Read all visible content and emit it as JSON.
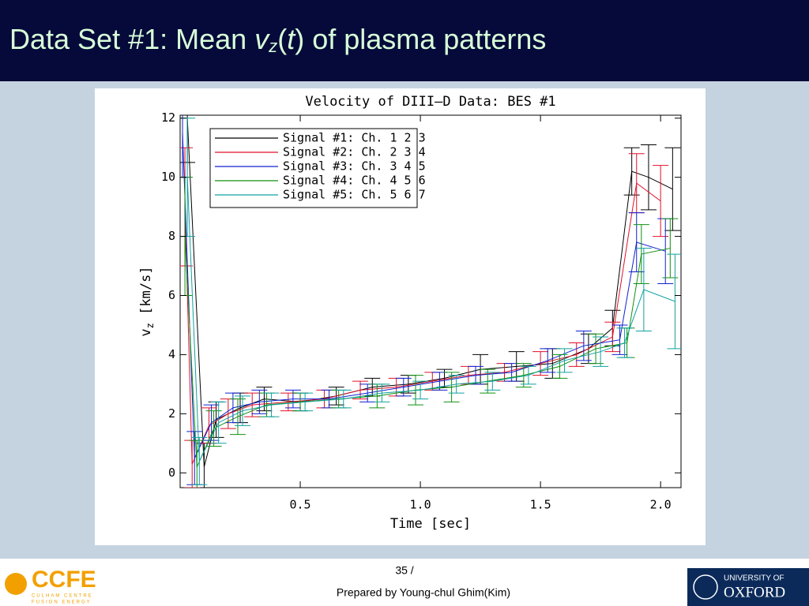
{
  "slide": {
    "title_parts": [
      "Data Set #1: Mean ",
      "v",
      "z",
      "(",
      "t",
      ") of plasma patterns"
    ],
    "page_number": "35 /",
    "footer": "Prepared by Young-chul Ghim(Kim)",
    "left_logo": {
      "name": "CCFE",
      "line1": "CULHAM CENTRE",
      "line2": "FUSION ENERGY"
    },
    "right_logo": {
      "line1": "UNIVERSITY OF",
      "line2": "OXFORD"
    }
  },
  "chart_data": {
    "type": "line",
    "title": "Velocity of DIII–D Data: BES #1",
    "x_label": "Time [sec]",
    "y_label_parts": [
      "v",
      "z",
      " [km/s]"
    ],
    "xlim": [
      0,
      2.085
    ],
    "ylim": [
      -0.5,
      12.1
    ],
    "xticks": [
      0.5,
      {
        "value": 1.0,
        "label": "1.0"
      },
      1.5,
      {
        "value": 2.0,
        "label": "2.0"
      }
    ],
    "yticks": [
      0,
      2,
      4,
      6,
      8,
      10,
      12
    ],
    "legend": "top-left",
    "series": [
      {
        "name": "Signal #1: Ch. 1 2 3",
        "color": "#000000",
        "x": [
          0.03,
          0.1,
          0.15,
          0.25,
          0.35,
          0.5,
          0.65,
          0.8,
          0.95,
          1.1,
          1.25,
          1.4,
          1.55,
          1.7,
          1.8,
          1.88,
          1.95,
          2.05
        ],
        "values": [
          12,
          0.2,
          1.8,
          2.2,
          2.5,
          2.4,
          2.6,
          2.9,
          3.0,
          3.2,
          3.5,
          3.6,
          3.7,
          4.2,
          4.9,
          10.2,
          10.0,
          9.6
        ],
        "errors": [
          1.5,
          0.8,
          0.6,
          0.5,
          0.4,
          0.3,
          0.3,
          0.3,
          0.3,
          0.3,
          0.5,
          0.5,
          0.5,
          0.5,
          0.6,
          0.8,
          1.1,
          1.4
        ]
      },
      {
        "name": "Signal #2: Ch. 2 3 4",
        "color": "#e0102a",
        "x": [
          0.02,
          0.05,
          0.12,
          0.2,
          0.3,
          0.45,
          0.6,
          0.75,
          0.9,
          1.05,
          1.2,
          1.35,
          1.5,
          1.65,
          1.8,
          1.9,
          2.0
        ],
        "values": [
          9,
          0.3,
          1.6,
          2.0,
          2.3,
          2.4,
          2.5,
          2.8,
          2.9,
          3.1,
          3.3,
          3.4,
          3.7,
          4.0,
          4.6,
          9.8,
          9.2
        ],
        "errors": [
          2.0,
          0.8,
          0.6,
          0.5,
          0.4,
          0.3,
          0.3,
          0.3,
          0.3,
          0.3,
          0.3,
          0.3,
          0.4,
          0.4,
          0.5,
          1.0,
          1.2
        ]
      },
      {
        "name": "Signal #3: Ch. 3 4 5",
        "color": "#1020d0",
        "x": [
          0.01,
          0.06,
          0.13,
          0.22,
          0.33,
          0.47,
          0.62,
          0.78,
          0.93,
          1.08,
          1.23,
          1.38,
          1.53,
          1.68,
          1.83,
          1.9,
          2.02
        ],
        "values": [
          11.5,
          0.5,
          1.7,
          2.2,
          2.4,
          2.5,
          2.5,
          2.7,
          2.9,
          3.1,
          3.3,
          3.4,
          3.8,
          4.3,
          4.5,
          7.8,
          7.5
        ],
        "errors": [
          1.5,
          0.9,
          0.6,
          0.5,
          0.4,
          0.3,
          0.3,
          0.3,
          0.3,
          0.3,
          0.3,
          0.3,
          0.4,
          0.5,
          0.5,
          1.0,
          1.1
        ]
      },
      {
        "name": "Signal #4: Ch. 4 5 6",
        "color": "#109010",
        "x": [
          0.02,
          0.07,
          0.14,
          0.24,
          0.36,
          0.5,
          0.66,
          0.82,
          0.98,
          1.13,
          1.28,
          1.43,
          1.58,
          1.73,
          1.86,
          1.92,
          2.04
        ],
        "values": [
          8,
          0.2,
          1.5,
          1.9,
          2.3,
          2.4,
          2.5,
          2.6,
          2.8,
          2.9,
          3.1,
          3.3,
          3.6,
          4.2,
          4.4,
          7.4,
          7.6
        ],
        "errors": [
          2.0,
          0.9,
          0.6,
          0.6,
          0.4,
          0.3,
          0.3,
          0.4,
          0.5,
          0.5,
          0.4,
          0.4,
          0.4,
          0.5,
          0.5,
          1.0,
          1.0
        ]
      },
      {
        "name": "Signal #5: Ch. 5 6 7",
        "color": "#10a0a0",
        "x": [
          0.03,
          0.08,
          0.16,
          0.26,
          0.38,
          0.52,
          0.68,
          0.84,
          1.0,
          1.15,
          1.3,
          1.45,
          1.6,
          1.75,
          1.85,
          1.93,
          2.06
        ],
        "values": [
          10,
          0.4,
          1.7,
          2.1,
          2.3,
          2.4,
          2.5,
          2.7,
          2.8,
          3.0,
          3.1,
          3.3,
          3.8,
          4.1,
          4.4,
          6.2,
          5.8
        ],
        "errors": [
          2.0,
          0.8,
          0.7,
          0.5,
          0.4,
          0.3,
          0.3,
          0.3,
          0.3,
          0.3,
          0.3,
          0.3,
          0.4,
          0.5,
          0.5,
          1.4,
          1.6
        ]
      }
    ]
  }
}
